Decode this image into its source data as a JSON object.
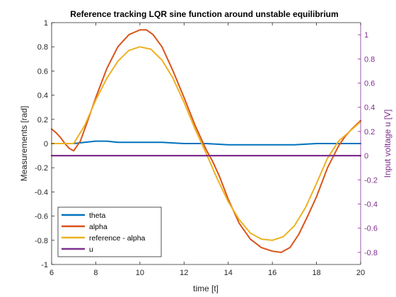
{
  "chart_data": {
    "type": "line",
    "title": "Reference tracking LQR sine function around unstable equilibrium",
    "xlabel": "time [t]",
    "ylabel_left": "Measurements [rad]",
    "ylabel_right": "Input voltage u [V]",
    "xlim": [
      6,
      20
    ],
    "ylim_left": [
      -1,
      1
    ],
    "ylim_right": [
      -0.9,
      1.1
    ],
    "x_ticks": [
      "6",
      "8",
      "10",
      "12",
      "14",
      "16",
      "18",
      "20"
    ],
    "y_ticks_left": [
      "1",
      "0.8",
      "0.6",
      "0.4",
      "0.2",
      "0",
      "-0.2",
      "-0.4",
      "-0.6",
      "-0.8",
      "-1"
    ],
    "y_ticks_right": [
      "1",
      "0.8",
      "0.6",
      "0.4",
      "0.2",
      "0",
      "-0.2",
      "-0.4",
      "-0.6",
      "-0.8"
    ],
    "grid": false,
    "legend_position": "bottom-left",
    "series": [
      {
        "name": "theta",
        "axis": "left",
        "color": "#0072BD",
        "x": [
          6,
          7,
          7.5,
          8,
          8.5,
          9,
          10,
          11,
          12,
          13,
          14,
          15,
          16,
          17,
          18,
          19,
          20
        ],
        "y": [
          0.0,
          0.0,
          0.01,
          0.02,
          0.02,
          0.01,
          0.01,
          0.01,
          0.0,
          0.0,
          -0.01,
          -0.01,
          -0.01,
          -0.01,
          0.0,
          0.0,
          0.0
        ]
      },
      {
        "name": "alpha",
        "axis": "left",
        "color": "#D95319",
        "x": [
          6,
          6.2,
          6.4,
          6.6,
          6.8,
          7.0,
          7.3,
          7.6,
          8.0,
          8.5,
          9.0,
          9.5,
          10.0,
          10.3,
          10.6,
          11.0,
          11.5,
          12.0,
          12.5,
          13.0,
          13.3,
          13.6,
          14.0,
          14.5,
          15.0,
          15.5,
          16.0,
          16.4,
          16.8,
          17.2,
          17.6,
          18.0,
          18.5,
          19.0,
          19.3,
          19.6,
          20.0
        ],
        "y": [
          0.12,
          0.09,
          0.05,
          0.0,
          -0.04,
          -0.06,
          0.02,
          0.17,
          0.38,
          0.62,
          0.8,
          0.9,
          0.94,
          0.94,
          0.9,
          0.8,
          0.6,
          0.38,
          0.15,
          -0.05,
          -0.15,
          -0.27,
          -0.46,
          -0.66,
          -0.79,
          -0.86,
          -0.89,
          -0.9,
          -0.86,
          -0.75,
          -0.6,
          -0.44,
          -0.2,
          -0.02,
          0.06,
          0.12,
          0.19
        ]
      },
      {
        "name": "reference - alpha",
        "axis": "left",
        "color": "#EDB120",
        "x": [
          6,
          6.5,
          7,
          7.5,
          8,
          8.5,
          9,
          9.5,
          10,
          10.5,
          11,
          11.5,
          12,
          12.5,
          13,
          13.5,
          14,
          14.5,
          15,
          15.5,
          16,
          16.5,
          17,
          17.5,
          18,
          18.5,
          19,
          19.5,
          20
        ],
        "y": [
          0.0,
          0.0,
          0.0,
          0.15,
          0.36,
          0.54,
          0.68,
          0.77,
          0.8,
          0.78,
          0.69,
          0.54,
          0.34,
          0.12,
          -0.08,
          -0.29,
          -0.48,
          -0.63,
          -0.74,
          -0.79,
          -0.8,
          -0.77,
          -0.68,
          -0.53,
          -0.33,
          -0.12,
          0.02,
          0.1,
          0.18
        ]
      },
      {
        "name": "u",
        "axis": "right",
        "color": "#7E2F8E",
        "x": [
          6,
          7,
          8,
          9,
          10,
          11,
          12,
          13,
          14,
          15,
          16,
          17,
          18,
          19,
          20
        ],
        "y": [
          0.0,
          0.0,
          0.0,
          0.0,
          0.0,
          0.0,
          0.0,
          0.0,
          0.0,
          0.0,
          0.0,
          0.0,
          0.0,
          0.0,
          0.0
        ]
      }
    ]
  }
}
